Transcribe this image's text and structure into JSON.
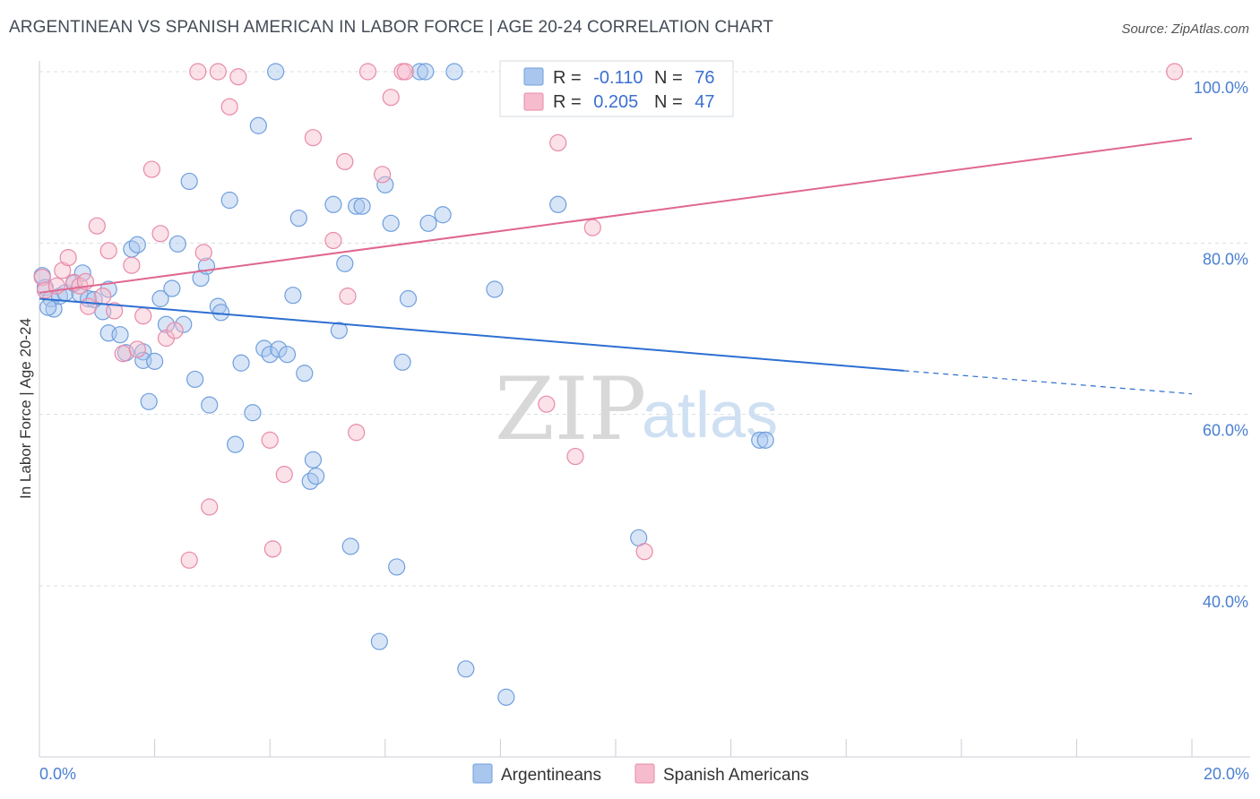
{
  "header": {
    "title": "ARGENTINEAN VS SPANISH AMERICAN IN LABOR FORCE | AGE 20-24 CORRELATION CHART",
    "source": "Source: ZipAtlas.com"
  },
  "watermark": {
    "zip": "ZIP",
    "atlas": "atlas"
  },
  "legend": {
    "rows": [
      {
        "r_label": "R =",
        "r_value": "-0.110",
        "n_label": "N =",
        "n_value": "76"
      },
      {
        "r_label": "R =",
        "r_value": "0.205",
        "n_label": "N =",
        "n_value": "47"
      }
    ],
    "bottom": [
      "Argentineans",
      "Spanish Americans"
    ]
  },
  "colors": {
    "blue_fill": "#a9c6ee",
    "blue_stroke": "#6f9fdd",
    "blue_line": "#2e6fd1",
    "pink_fill": "#f6bccd",
    "pink_stroke": "#e88aa8",
    "pink_line": "#e0678f",
    "grid": "#d9dde3",
    "axis_label": "#4a7fd0"
  },
  "chart_data": {
    "type": "scatter",
    "title": "ARGENTINEAN VS SPANISH AMERICAN IN LABOR FORCE | AGE 20-24 CORRELATION CHART",
    "xlabel": "",
    "ylabel": "In Labor Force | Age 20-24",
    "xlim": [
      0,
      20
    ],
    "ylim": [
      20,
      102
    ],
    "x_tick_labels": [
      "0.0%",
      "20.0%"
    ],
    "y_tick_labels": [
      "40.0%",
      "60.0%",
      "80.0%",
      "100.0%"
    ],
    "y_ticks": [
      40,
      60,
      80,
      100
    ],
    "grid": true,
    "legend_position": "top-center",
    "series": [
      {
        "name": "Argentineans",
        "color": "#a9c6ee",
        "points": [
          [
            0.05,
            76.2
          ],
          [
            0.1,
            74.8
          ],
          [
            0.2,
            73.5
          ],
          [
            0.25,
            72.3
          ],
          [
            0.35,
            73.8
          ],
          [
            0.45,
            74.2
          ],
          [
            0.6,
            75.3
          ],
          [
            0.7,
            74.1
          ],
          [
            0.75,
            76.5
          ],
          [
            0.85,
            73.5
          ],
          [
            0.95,
            73.4
          ],
          [
            1.1,
            72.0
          ],
          [
            1.2,
            74.6
          ],
          [
            1.2,
            69.5
          ],
          [
            1.4,
            69.3
          ],
          [
            1.5,
            67.2
          ],
          [
            1.6,
            79.3
          ],
          [
            1.7,
            79.8
          ],
          [
            1.8,
            67.3
          ],
          [
            1.8,
            66.3
          ],
          [
            1.9,
            61.5
          ],
          [
            2.0,
            66.2
          ],
          [
            2.1,
            73.5
          ],
          [
            2.2,
            70.5
          ],
          [
            2.3,
            74.7
          ],
          [
            2.4,
            79.9
          ],
          [
            2.5,
            70.5
          ],
          [
            2.6,
            87.2
          ],
          [
            2.7,
            64.1
          ],
          [
            2.8,
            75.9
          ],
          [
            2.9,
            77.3
          ],
          [
            2.95,
            61.1
          ],
          [
            3.1,
            72.6
          ],
          [
            3.15,
            71.9
          ],
          [
            3.3,
            85.0
          ],
          [
            3.4,
            56.5
          ],
          [
            3.5,
            66.0
          ],
          [
            3.7,
            60.2
          ],
          [
            3.8,
            93.7
          ],
          [
            3.9,
            67.7
          ],
          [
            4.0,
            67.0
          ],
          [
            4.1,
            100.0
          ],
          [
            4.15,
            67.6
          ],
          [
            4.3,
            67.0
          ],
          [
            4.4,
            73.9
          ],
          [
            4.5,
            82.9
          ],
          [
            4.6,
            64.8
          ],
          [
            4.7,
            52.2
          ],
          [
            4.75,
            54.7
          ],
          [
            4.8,
            52.8
          ],
          [
            5.1,
            84.5
          ],
          [
            5.2,
            69.8
          ],
          [
            5.3,
            77.6
          ],
          [
            5.4,
            44.6
          ],
          [
            5.5,
            84.3
          ],
          [
            5.6,
            84.3
          ],
          [
            5.9,
            33.5
          ],
          [
            6.0,
            86.8
          ],
          [
            6.1,
            82.3
          ],
          [
            6.2,
            42.2
          ],
          [
            6.3,
            66.1
          ],
          [
            6.4,
            73.5
          ],
          [
            6.6,
            100.0
          ],
          [
            6.7,
            100.0
          ],
          [
            6.75,
            82.3
          ],
          [
            7.0,
            83.3
          ],
          [
            7.2,
            100.0
          ],
          [
            7.4,
            30.3
          ],
          [
            7.9,
            74.6
          ],
          [
            8.1,
            27.0
          ],
          [
            9.0,
            84.5
          ],
          [
            9.2,
            100.0
          ],
          [
            10.4,
            45.6
          ],
          [
            12.5,
            57.0
          ],
          [
            12.6,
            57.0
          ],
          [
            0.15,
            72.5
          ]
        ]
      },
      {
        "name": "Spanish Americans",
        "color": "#f6bccd",
        "points": [
          [
            0.05,
            76.0
          ],
          [
            0.1,
            74.5
          ],
          [
            0.3,
            75.0
          ],
          [
            0.4,
            76.8
          ],
          [
            0.5,
            78.3
          ],
          [
            0.6,
            75.4
          ],
          [
            0.7,
            75.0
          ],
          [
            0.8,
            75.5
          ],
          [
            0.85,
            72.6
          ],
          [
            1.0,
            82.0
          ],
          [
            1.1,
            73.8
          ],
          [
            1.2,
            79.1
          ],
          [
            1.3,
            72.1
          ],
          [
            1.45,
            67.1
          ],
          [
            1.6,
            77.4
          ],
          [
            1.7,
            67.6
          ],
          [
            1.8,
            71.5
          ],
          [
            1.95,
            88.6
          ],
          [
            2.1,
            81.1
          ],
          [
            2.2,
            68.9
          ],
          [
            2.35,
            69.8
          ],
          [
            2.6,
            43.0
          ],
          [
            2.75,
            100.0
          ],
          [
            2.85,
            78.9
          ],
          [
            2.95,
            49.2
          ],
          [
            3.1,
            100.0
          ],
          [
            3.3,
            95.9
          ],
          [
            3.45,
            99.4
          ],
          [
            4.0,
            57.0
          ],
          [
            4.05,
            44.3
          ],
          [
            4.25,
            53.0
          ],
          [
            4.75,
            92.3
          ],
          [
            5.1,
            80.3
          ],
          [
            5.3,
            89.5
          ],
          [
            5.35,
            73.8
          ],
          [
            5.5,
            57.9
          ],
          [
            5.7,
            100.0
          ],
          [
            5.95,
            88.0
          ],
          [
            6.1,
            97.0
          ],
          [
            6.3,
            100.0
          ],
          [
            6.35,
            100.0
          ],
          [
            8.8,
            61.2
          ],
          [
            9.0,
            91.7
          ],
          [
            9.3,
            55.1
          ],
          [
            9.6,
            81.8
          ],
          [
            10.5,
            44.0
          ],
          [
            19.7,
            100.0
          ]
        ]
      }
    ],
    "trend_lines": [
      {
        "series": "Argentineans",
        "solid": [
          [
            0,
            73.5
          ],
          [
            15.0,
            65.1
          ]
        ],
        "dashed": [
          [
            15.0,
            65.1
          ],
          [
            20.0,
            62.4
          ]
        ]
      },
      {
        "series": "Spanish Americans",
        "solid": [
          [
            0,
            74.2
          ],
          [
            20.0,
            92.2
          ]
        ]
      }
    ]
  }
}
